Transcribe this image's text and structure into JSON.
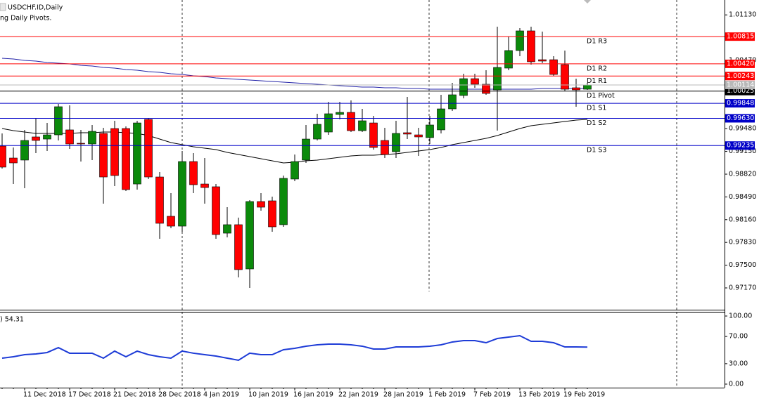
{
  "chart_data": [
    {
      "type": "candlestick",
      "title": "USDCHF.ID,Daily",
      "subtitle": "ng Daily Pivots.",
      "categories": [
        null,
        null,
        "11 Dec 2018",
        null,
        null,
        null,
        "17 Dec 2018",
        null,
        null,
        null,
        "21 Dec 2018",
        null,
        null,
        null,
        "28 Dec 2018",
        null,
        null,
        null,
        "4 Jan 2019",
        null,
        null,
        null,
        "10 Jan 2019",
        null,
        null,
        null,
        "16 Jan 2019",
        null,
        null,
        null,
        "22 Jan 2019",
        null,
        null,
        null,
        "28 Jan 2019",
        null,
        null,
        null,
        "1 Feb 2019",
        null,
        null,
        null,
        "7 Feb 2019",
        null,
        null,
        null,
        "13 Feb 2019",
        null,
        null,
        null,
        "19 Feb 2019",
        null,
        null
      ],
      "open": [
        0.99227,
        0.99054,
        0.99024,
        0.9936,
        0.99329,
        0.9939,
        0.99462,
        0.99268,
        0.99258,
        0.99411,
        0.99482,
        0.99482,
        0.98677,
        0.99614,
        0.98779,
        0.98209,
        0.98066,
        0.99003,
        0.98677,
        0.98637,
        0.97964,
        0.98087,
        0.97445,
        0.98423,
        0.98433,
        0.98087,
        0.98749,
        0.99024,
        0.99329,
        0.99431,
        0.99686,
        0.99716,
        0.99451,
        0.99563,
        0.99309,
        0.99146,
        0.99421,
        0.9939,
        0.9935,
        0.99462,
        0.99767,
        0.99961,
        1.00205,
        1.00124,
        1.00042,
        1.00358,
        1.00613,
        1.00898,
        1.0048,
        1.0048,
        1.00409,
        1.00073,
        1.00052
      ],
      "high": [
        0.99411,
        0.99207,
        0.99462,
        0.99635,
        0.99563,
        0.99838,
        0.99818,
        0.99462,
        0.99533,
        0.99492,
        0.99594,
        0.99513,
        0.99594,
        0.99635,
        0.98851,
        0.98545,
        0.99156,
        0.99126,
        0.99054,
        0.98677,
        0.98341,
        0.98189,
        0.98443,
        0.98545,
        0.98494,
        0.988,
        0.99105,
        0.99533,
        0.99696,
        0.99869,
        0.99869,
        0.99889,
        0.99767,
        0.99665,
        0.99492,
        0.99594,
        0.9994,
        0.99492,
        0.99665,
        0.99971,
        1.00144,
        1.00276,
        1.00276,
        1.00327,
        1.00959,
        1.00816,
        1.00938,
        1.00959,
        1.00888,
        1.00531,
        1.00613,
        1.00205,
        1.00144
      ],
      "low": [
        0.98901,
        0.98677,
        0.98616,
        0.99126,
        0.99156,
        0.99309,
        0.99187,
        0.99003,
        0.99024,
        0.98392,
        0.98647,
        0.98576,
        0.98596,
        0.98749,
        0.97883,
        0.98036,
        0.97985,
        0.98545,
        0.98392,
        0.97883,
        0.97903,
        0.97323,
        0.9717,
        0.9829,
        0.97985,
        0.98056,
        0.98718,
        0.98983,
        0.99309,
        0.9939,
        0.99614,
        0.99431,
        0.99431,
        0.99176,
        0.99054,
        0.99054,
        0.99329,
        0.99085,
        0.99258,
        0.99411,
        0.99737,
        0.9992,
        1.00073,
        0.99971,
        0.99451,
        1.00327,
        1.00531,
        1.00409,
        1.00429,
        1.00246,
        1.00022,
        0.99798,
        1.00042
      ],
      "close": [
        0.98922,
        0.98983,
        0.99309,
        0.99309,
        0.9939,
        0.99798,
        0.99258,
        0.99258,
        0.99441,
        0.98779,
        0.988,
        0.98596,
        0.99563,
        0.98779,
        0.98107,
        0.98066,
        0.99003,
        0.98667,
        0.98626,
        0.97944,
        0.98087,
        0.97435,
        0.98423,
        0.98341,
        0.98056,
        0.98759,
        0.99003,
        0.99329,
        0.99543,
        0.99696,
        0.99716,
        0.99451,
        0.99594,
        0.99207,
        0.99105,
        0.99411,
        0.99401,
        0.9936,
        0.99533,
        0.99767,
        0.99971,
        1.00205,
        1.00124,
        0.99991,
        1.00368,
        1.00613,
        1.00898,
        1.0045,
        1.0046,
        1.00266,
        1.00052,
        1.00042,
        1.00114
      ],
      "up_color": "#0b8a0b",
      "down_color": "#ff0000",
      "series": [
        {
          "color": "#2323a8",
          "values": [
            1.005,
            1.0049,
            1.0047,
            1.0046,
            1.00439,
            1.00429,
            1.00419,
            1.00399,
            1.00388,
            1.00368,
            1.00358,
            1.00338,
            1.00327,
            1.00307,
            1.00297,
            1.00276,
            1.00266,
            1.00246,
            1.00236,
            1.00215,
            1.00205,
            1.00195,
            1.00185,
            1.00175,
            1.00164,
            1.00154,
            1.00144,
            1.00134,
            1.00124,
            1.00113,
            1.00103,
            1.00093,
            1.00083,
            1.00083,
            1.00073,
            1.00073,
            1.00063,
            1.00063,
            1.00052,
            1.00052,
            1.00052,
            1.00052,
            1.00052,
            1.00052,
            1.00052,
            1.00052,
            1.00052,
            1.00052,
            1.00063,
            1.00063,
            1.00063,
            1.00063,
            1.00063
          ]
        },
        {
          "color": "#000000",
          "values": [
            0.99482,
            0.99451,
            0.99431,
            0.99411,
            0.99411,
            0.99411,
            0.99411,
            0.99421,
            0.99421,
            0.99431,
            0.99431,
            0.99421,
            0.99411,
            0.9938,
            0.99329,
            0.99278,
            0.99248,
            0.99217,
            0.99197,
            0.99176,
            0.99136,
            0.99105,
            0.99075,
            0.99044,
            0.99013,
            0.98983,
            0.98993,
            0.99013,
            0.99024,
            0.99044,
            0.99064,
            0.99085,
            0.99095,
            0.99095,
            0.99105,
            0.99115,
            0.99136,
            0.99156,
            0.99176,
            0.99207,
            0.99248,
            0.99278,
            0.99309,
            0.99339,
            0.9938,
            0.99431,
            0.99482,
            0.99523,
            0.99543,
            0.99563,
            0.99584,
            0.99604,
            0.99614
          ]
        }
      ],
      "pivots": {
        "names": [
          "D1 R3",
          "D1 R2",
          "D1 R1",
          "D1 Pivot",
          "D1 S1",
          "D1 S2",
          "D1 S3"
        ],
        "values": [
          1.00815,
          1.0042,
          1.00243,
          1.00025,
          0.99848,
          0.9963,
          0.99235
        ],
        "value_labels": [
          "1.00815",
          "1.00420",
          "1.00243",
          "1.00025",
          "0.99848",
          "0.99630",
          "0.99235"
        ],
        "colors": [
          "#ff0000",
          "#ff0000",
          "#ff0000",
          "#000000",
          "#0000c8",
          "#0000c8",
          "#0000c8"
        ]
      },
      "last_price": 1.00114,
      "last_price_label": "1.00114",
      "last_price_color": "#b8b8b8",
      "ylim": [
        0.96854,
        1.01346
      ],
      "yticks": [
        {
          "value": 1.0113,
          "label": "1.01130"
        },
        {
          "value": 1.0047,
          "label": "1.00470"
        },
        {
          "value": 0.9948,
          "label": "0.99480"
        },
        {
          "value": 0.9915,
          "label": "0.99150"
        },
        {
          "value": 0.9882,
          "label": "0.98820"
        },
        {
          "value": 0.9849,
          "label": "0.98490"
        },
        {
          "value": 0.9816,
          "label": "0.98160"
        },
        {
          "value": 0.9783,
          "label": "0.97830"
        },
        {
          "value": 0.975,
          "label": "0.97500"
        },
        {
          "value": 0.9717,
          "label": "0.97170"
        }
      ]
    },
    {
      "type": "line",
      "label": ") 54.31",
      "color": "#1e3cd7",
      "values": [
        38.1,
        40.2,
        43.3,
        44.3,
        46.4,
        53.6,
        45.4,
        45.4,
        45.4,
        38.1,
        48.5,
        40.2,
        48.5,
        43.3,
        40.2,
        38.1,
        48.5,
        45.4,
        43.3,
        41.2,
        38.1,
        35.1,
        45.4,
        43.3,
        43.3,
        50.5,
        52.6,
        55.7,
        57.7,
        58.8,
        58.8,
        57.7,
        55.7,
        51.5,
        51.5,
        54.6,
        54.6,
        54.6,
        55.7,
        57.7,
        61.9,
        63.9,
        63.9,
        60.8,
        67.0,
        69.1,
        71.1,
        62.9,
        62.9,
        60.8,
        54.6,
        54.6,
        54.31
      ],
      "ylim": [
        -5.2,
        106.2
      ],
      "yticks": [
        {
          "value": 100,
          "label": "100.00"
        },
        {
          "value": 70,
          "label": "70.00"
        },
        {
          "value": 30,
          "label": "30.00"
        },
        {
          "value": 0,
          "label": "0.00"
        }
      ]
    }
  ]
}
